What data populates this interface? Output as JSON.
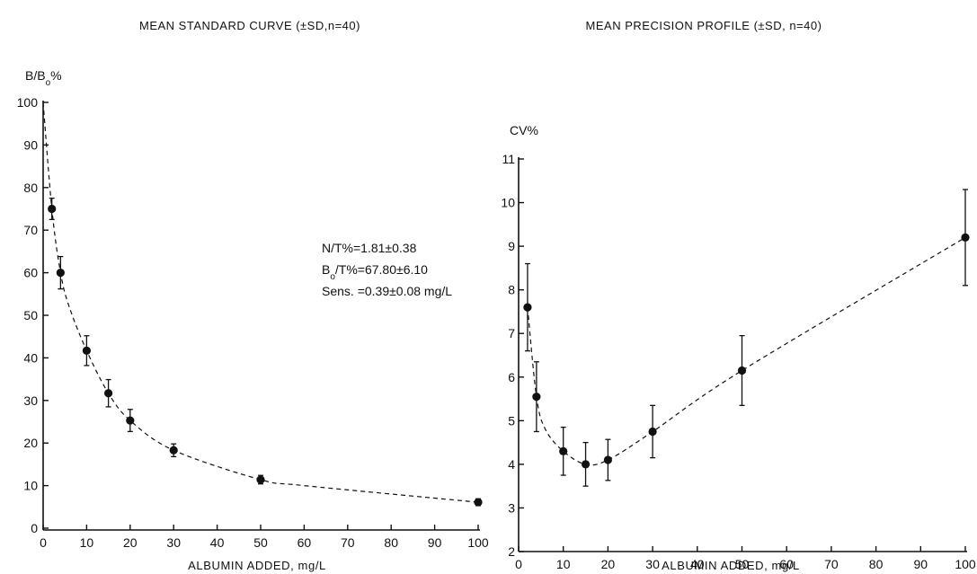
{
  "chart_data": [
    {
      "type": "scatter",
      "title": "MEAN STANDARD CURVE (±SD,n=40)",
      "xlabel": "ALBUMIN ADDED, mg/L",
      "ylabel": "B/B₀%",
      "xlim": [
        0,
        100
      ],
      "ylim": [
        0,
        100
      ],
      "xticks": [
        0,
        10,
        20,
        30,
        40,
        50,
        60,
        70,
        80,
        90,
        100
      ],
      "yticks": [
        0,
        10,
        20,
        30,
        40,
        50,
        60,
        70,
        80,
        90,
        100
      ],
      "series": [
        {
          "x": [
            2,
            4,
            10,
            15,
            20,
            30,
            50,
            100
          ],
          "y": [
            75,
            60,
            41.7,
            31.7,
            25.3,
            18.3,
            11.4,
            6.1
          ],
          "sd": [
            2.5,
            3.8,
            3.5,
            3.2,
            2.6,
            1.5,
            1.0,
            0.8
          ]
        }
      ],
      "curve": {
        "x": [
          0,
          2,
          4,
          6,
          10,
          15,
          20,
          30,
          50,
          60,
          100
        ],
        "y": [
          100,
          75,
          60,
          52,
          41.7,
          31.7,
          25.3,
          18.3,
          11.4,
          10,
          6.1
        ]
      },
      "annotations": {
        "line1": "N/T%=1.81±0.38",
        "line2_prefix": "B",
        "line2_sub": "o",
        "line2_rest": "/T%=67.80±6.10",
        "line3": "Sens. =0.39±0.08 mg/L"
      },
      "grid": false
    },
    {
      "type": "scatter",
      "title": "MEAN PRECISION PROFILE (±SD, n=40)",
      "xlabel": "ALBUMIN ADDED, mg/L",
      "ylabel": "CV%",
      "xlim": [
        0,
        100
      ],
      "ylim": [
        2,
        11
      ],
      "xticks": [
        0,
        10,
        20,
        30,
        40,
        50,
        60,
        70,
        80,
        90,
        100
      ],
      "yticks": [
        2,
        3,
        4,
        5,
        6,
        7,
        8,
        9,
        10,
        11
      ],
      "series": [
        {
          "x": [
            2,
            4,
            10,
            15,
            20,
            30,
            50,
            100
          ],
          "y": [
            7.6,
            5.55,
            4.3,
            4.0,
            4.1,
            4.75,
            6.15,
            9.2
          ],
          "sd": [
            1.0,
            0.8,
            0.55,
            0.5,
            0.47,
            0.6,
            0.8,
            1.1
          ]
        }
      ],
      "curve": {
        "x": [
          2,
          4,
          6,
          10,
          15,
          20,
          30,
          50,
          100
        ],
        "y": [
          7.6,
          5.55,
          4.8,
          4.3,
          4.0,
          4.1,
          4.75,
          6.15,
          9.2
        ]
      },
      "grid": false
    }
  ]
}
